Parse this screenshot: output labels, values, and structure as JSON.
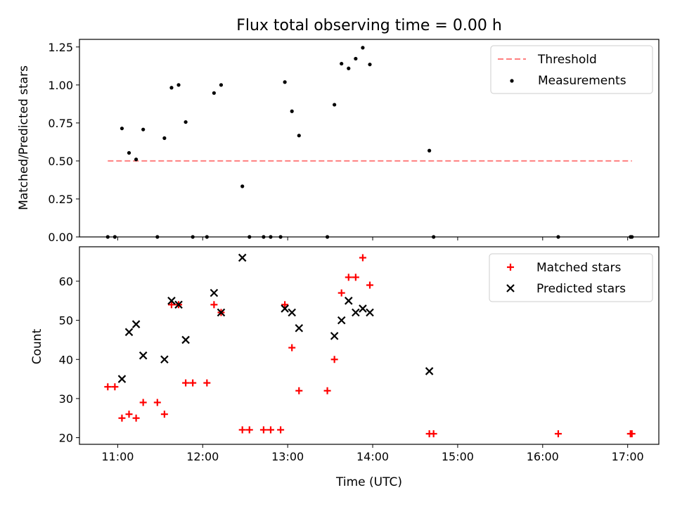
{
  "chart_data": [
    {
      "type": "scatter",
      "title": "Flux total observing time = 0.00 h",
      "xlabel": "",
      "ylabel": "Matched/Predicted stars",
      "xlim": [
        "10:33",
        "17:22"
      ],
      "ylim": [
        0,
        1.3
      ],
      "yticks": [
        "0.00",
        "0.25",
        "0.50",
        "0.75",
        "1.00",
        "1.25"
      ],
      "xticks": [
        "11:00",
        "12:00",
        "13:00",
        "14:00",
        "15:00",
        "16:00",
        "17:00"
      ],
      "legend_position": "top-right",
      "colors": {
        "threshold": "#ff7f7f",
        "measurements": "#000000"
      },
      "series": [
        {
          "name": "Threshold",
          "kind": "dashed-line",
          "points": [
            [
              "10:53",
              0.5
            ],
            [
              "17:03",
              0.5
            ]
          ]
        },
        {
          "name": "Measurements",
          "kind": "points",
          "points": [
            [
              "10:53",
              0.0
            ],
            [
              "10:58",
              0.0
            ],
            [
              "11:03",
              0.714
            ],
            [
              "11:08",
              0.553
            ],
            [
              "11:13",
              0.51
            ],
            [
              "11:18",
              0.707
            ],
            [
              "11:28",
              0.0
            ],
            [
              "11:33",
              0.65
            ],
            [
              "11:38",
              0.982
            ],
            [
              "11:43",
              1.0
            ],
            [
              "11:48",
              0.756
            ],
            [
              "11:53",
              0.0
            ],
            [
              "12:03",
              0.0
            ],
            [
              "12:08",
              0.947
            ],
            [
              "12:13",
              1.0
            ],
            [
              "12:28",
              0.333
            ],
            [
              "12:33",
              0.0
            ],
            [
              "12:43",
              0.0
            ],
            [
              "12:48",
              0.0
            ],
            [
              "12:55",
              0.0
            ],
            [
              "12:58",
              1.019
            ],
            [
              "13:03",
              0.827
            ],
            [
              "13:08",
              0.667
            ],
            [
              "13:28",
              0.0
            ],
            [
              "13:33",
              0.87
            ],
            [
              "13:38",
              1.14
            ],
            [
              "13:43",
              1.109
            ],
            [
              "13:48",
              1.173
            ],
            [
              "13:53",
              1.245
            ],
            [
              "13:58",
              1.135
            ],
            [
              "14:40",
              0.568
            ],
            [
              "14:43",
              0.0
            ],
            [
              "16:11",
              0.0
            ],
            [
              "17:02",
              0.0
            ],
            [
              "17:03",
              0.0
            ]
          ]
        }
      ]
    },
    {
      "type": "scatter",
      "title": "",
      "xlabel": "Time (UTC)",
      "ylabel": "Count",
      "xlim": [
        "10:33",
        "17:22"
      ],
      "ylim": [
        18.3,
        68.8
      ],
      "yticks": [
        "20",
        "30",
        "40",
        "50",
        "60"
      ],
      "xticks": [
        "11:00",
        "12:00",
        "13:00",
        "14:00",
        "15:00",
        "16:00",
        "17:00"
      ],
      "legend_position": "top-right",
      "colors": {
        "matched": "#ff0000",
        "predicted": "#000000"
      },
      "series": [
        {
          "name": "Matched stars",
          "marker": "plus",
          "points": [
            [
              "10:53",
              33
            ],
            [
              "10:58",
              33
            ],
            [
              "11:03",
              25
            ],
            [
              "11:08",
              26
            ],
            [
              "11:13",
              25
            ],
            [
              "11:18",
              29
            ],
            [
              "11:28",
              29
            ],
            [
              "11:33",
              26
            ],
            [
              "11:38",
              54
            ],
            [
              "11:43",
              54
            ],
            [
              "11:48",
              34
            ],
            [
              "11:53",
              34
            ],
            [
              "12:03",
              34
            ],
            [
              "12:08",
              54
            ],
            [
              "12:13",
              52
            ],
            [
              "12:28",
              22
            ],
            [
              "12:33",
              22
            ],
            [
              "12:43",
              22
            ],
            [
              "12:48",
              22
            ],
            [
              "12:55",
              22
            ],
            [
              "12:58",
              54
            ],
            [
              "13:03",
              43
            ],
            [
              "13:08",
              32
            ],
            [
              "13:28",
              32
            ],
            [
              "13:33",
              40
            ],
            [
              "13:38",
              57
            ],
            [
              "13:43",
              61
            ],
            [
              "13:48",
              61
            ],
            [
              "13:53",
              66
            ],
            [
              "13:58",
              59
            ],
            [
              "14:40",
              21
            ],
            [
              "14:43",
              21
            ],
            [
              "16:11",
              21
            ],
            [
              "17:02",
              21
            ],
            [
              "17:03",
              21
            ]
          ]
        },
        {
          "name": "Predicted stars",
          "marker": "x",
          "points": [
            [
              "11:03",
              35
            ],
            [
              "11:08",
              47
            ],
            [
              "11:13",
              49
            ],
            [
              "11:18",
              41
            ],
            [
              "11:33",
              40
            ],
            [
              "11:38",
              55
            ],
            [
              "11:43",
              54
            ],
            [
              "11:48",
              45
            ],
            [
              "12:08",
              57
            ],
            [
              "12:13",
              52
            ],
            [
              "12:28",
              66
            ],
            [
              "12:58",
              53
            ],
            [
              "13:03",
              52
            ],
            [
              "13:08",
              48
            ],
            [
              "13:33",
              46
            ],
            [
              "13:38",
              50
            ],
            [
              "13:43",
              55
            ],
            [
              "13:48",
              52
            ],
            [
              "13:53",
              53
            ],
            [
              "13:58",
              52
            ],
            [
              "14:40",
              37
            ]
          ]
        }
      ]
    }
  ]
}
